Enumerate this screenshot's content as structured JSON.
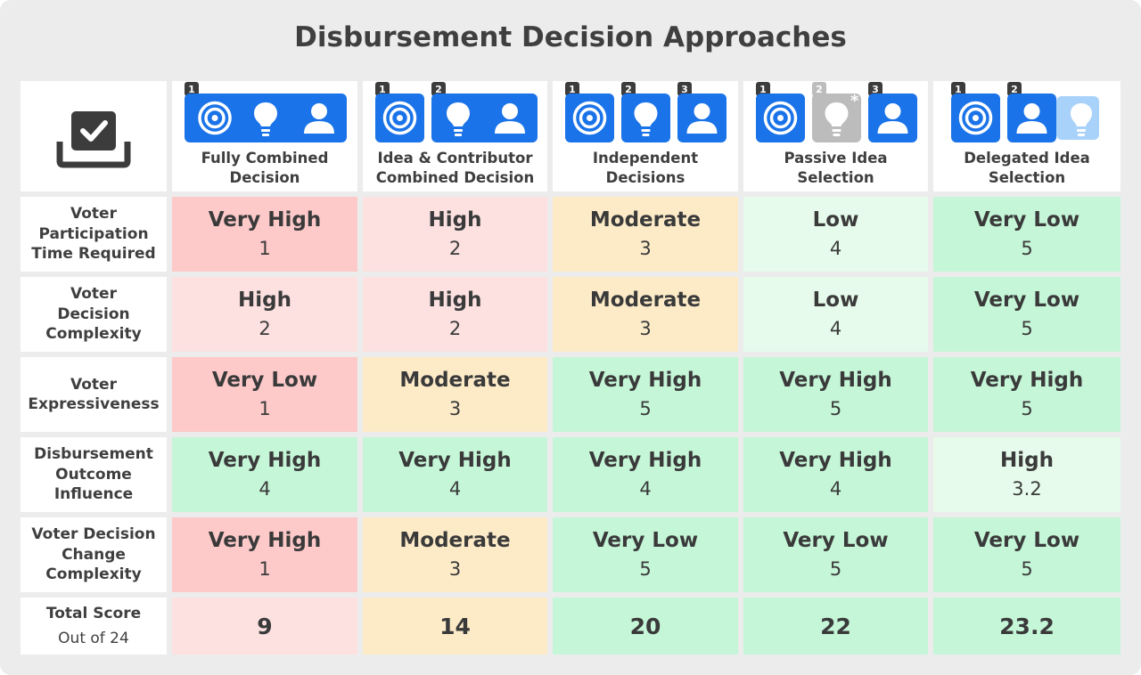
{
  "title": "Disbursement Decision Approaches",
  "colors": {
    "very_red": "#fdc9c9",
    "light_red": "#fde1e1",
    "yellow": "#fdebc8",
    "green": "#c5f6d8",
    "light_green": "#e6fbec",
    "tile_blue": "#1a73e8",
    "tile_gray": "#bcbcbc",
    "tile_light": "#a9d2fb"
  },
  "columns": [
    {
      "label": "Fully Combined Decision",
      "badges": [
        "1"
      ]
    },
    {
      "label": "Idea & Contributor Combined Decision",
      "badges": [
        "1",
        "2"
      ]
    },
    {
      "label": "Independent Decisions",
      "badges": [
        "1",
        "2",
        "3"
      ]
    },
    {
      "label": "Passive Idea Selection",
      "badges": [
        "1",
        "2",
        "3"
      ],
      "star": "*"
    },
    {
      "label": "Delegated Idea Selection",
      "badges": [
        "1",
        "2"
      ]
    }
  ],
  "icons": [
    "checkbox-tray-icon",
    "target-icon",
    "lightbulb-icon",
    "person-icon"
  ],
  "rows": [
    {
      "label": "Voter Participation Time Required",
      "cells": [
        {
          "rating": "Very High",
          "score": "1"
        },
        {
          "rating": "High",
          "score": "2"
        },
        {
          "rating": "Moderate",
          "score": "3"
        },
        {
          "rating": "Low",
          "score": "4"
        },
        {
          "rating": "Very Low",
          "score": "5"
        }
      ]
    },
    {
      "label": "Voter Decision Complexity",
      "cells": [
        {
          "rating": "High",
          "score": "2"
        },
        {
          "rating": "High",
          "score": "2"
        },
        {
          "rating": "Moderate",
          "score": "3"
        },
        {
          "rating": "Low",
          "score": "4"
        },
        {
          "rating": "Very Low",
          "score": "5"
        }
      ]
    },
    {
      "label": "Voter Expressiveness",
      "cells": [
        {
          "rating": "Very Low",
          "score": "1"
        },
        {
          "rating": "Moderate",
          "score": "3"
        },
        {
          "rating": "Very High",
          "score": "5"
        },
        {
          "rating": "Very High",
          "score": "5"
        },
        {
          "rating": "Very High",
          "score": "5"
        }
      ]
    },
    {
      "label": "Disbursement Outcome Influence",
      "cells": [
        {
          "rating": "Very High",
          "score": "4"
        },
        {
          "rating": "Very High",
          "score": "4"
        },
        {
          "rating": "Very High",
          "score": "4"
        },
        {
          "rating": "Very High",
          "score": "4"
        },
        {
          "rating": "High",
          "score": "3.2"
        }
      ]
    },
    {
      "label": "Voter Decision Change Complexity",
      "cells": [
        {
          "rating": "Very High",
          "score": "1"
        },
        {
          "rating": "Moderate",
          "score": "3"
        },
        {
          "rating": "Very Low",
          "score": "5"
        },
        {
          "rating": "Very Low",
          "score": "5"
        },
        {
          "rating": "Very Low",
          "score": "5"
        }
      ]
    }
  ],
  "total": {
    "label": "Total Score",
    "sublabel": "Out of 24",
    "values": [
      "9",
      "14",
      "20",
      "22",
      "23.2"
    ]
  }
}
